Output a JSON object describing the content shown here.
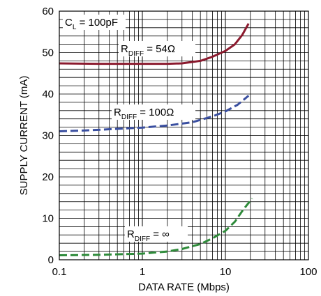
{
  "chart_data": {
    "type": "line",
    "xlabel": "DATA RATE (Mbps)",
    "ylabel": "SUPPLY CURRENT (mA)",
    "x_scale": "log",
    "xlim": [
      0.1,
      100
    ],
    "ylim": [
      0,
      60
    ],
    "grid": true,
    "x_ticks": [
      "0.1",
      "1",
      "10",
      "100"
    ],
    "y_ticks": [
      "0",
      "10",
      "20",
      "30",
      "40",
      "50",
      "60"
    ],
    "annotations": [
      {
        "main": "C",
        "sub": "L",
        "rest": " = 100pF"
      }
    ],
    "series": [
      {
        "label_main": "R",
        "label_sub": "DIFF",
        "label_rest": " = 54Ω",
        "color": "#8b1a2e",
        "style": "solid",
        "points": [
          [
            0.1,
            47.4
          ],
          [
            0.3,
            47.3
          ],
          [
            1,
            47.3
          ],
          [
            2,
            47.3
          ],
          [
            3,
            47.4
          ],
          [
            5,
            48.0
          ],
          [
            7,
            49.0
          ],
          [
            10,
            50.4
          ],
          [
            13,
            52.0
          ],
          [
            16,
            54.3
          ],
          [
            19,
            57.0
          ]
        ]
      },
      {
        "label_main": "R",
        "label_sub": "DIFF",
        "label_rest": " = 100Ω",
        "color": "#3a4fa0",
        "style": "dashed",
        "points": [
          [
            0.1,
            31.0
          ],
          [
            0.2,
            31.2
          ],
          [
            0.5,
            31.6
          ],
          [
            1,
            31.9
          ],
          [
            2,
            32.4
          ],
          [
            4,
            33.2
          ],
          [
            7,
            34.6
          ],
          [
            10,
            35.8
          ],
          [
            14,
            37.4
          ],
          [
            19,
            39.6
          ]
        ]
      },
      {
        "label_main": "R",
        "label_sub": "DIFF",
        "label_rest": " = ∞",
        "color": "#2e8b3a",
        "style": "dashed",
        "points": [
          [
            0.1,
            1.1
          ],
          [
            0.3,
            1.2
          ],
          [
            1,
            1.5
          ],
          [
            2,
            2.0
          ],
          [
            3,
            2.6
          ],
          [
            5,
            3.8
          ],
          [
            7,
            5.2
          ],
          [
            10,
            7.0
          ],
          [
            13,
            9.2
          ],
          [
            16,
            11.8
          ],
          [
            21,
            14.8
          ]
        ]
      }
    ]
  }
}
